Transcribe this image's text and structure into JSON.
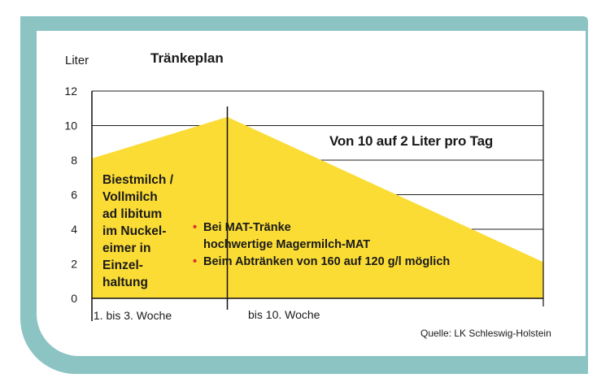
{
  "title": "Tränkeplan",
  "source": "Quelle: LK Schleswig-Holstein",
  "colors": {
    "frame": "#8cc3c3",
    "fill": "#fbdc35",
    "bullet": "#e0302a",
    "grid": "#222222"
  },
  "phase1_text": [
    "Biestmilch /",
    "Vollmilch",
    "ad libitum",
    "im Nuckel-",
    "eimer in",
    "Einzel-",
    "haltung"
  ],
  "bullets": [
    {
      "lines": [
        "Bei MAT-Tränke",
        "hochwertige Magermilch-MAT"
      ]
    },
    {
      "lines": [
        "Beim Abtränken von 160 auf 120 g/l möglich"
      ]
    }
  ],
  "chart_data": {
    "type": "area",
    "ylabel": "Liter",
    "ylim": [
      0,
      12
    ],
    "yticks": [
      "0",
      "2",
      "4",
      "6",
      "8",
      "10",
      "12"
    ],
    "grid": true,
    "x_categories": [
      "1. bis 3. Woche",
      "bis 10. Woche"
    ],
    "series": [
      {
        "values": [
          {
            "x": 0,
            "y": 8.1
          },
          {
            "x": 3,
            "y": 10.5
          },
          {
            "x": 10,
            "y": 2.1
          }
        ]
      }
    ],
    "annotation": "Von 10 auf 2 Liter pro Tag"
  }
}
